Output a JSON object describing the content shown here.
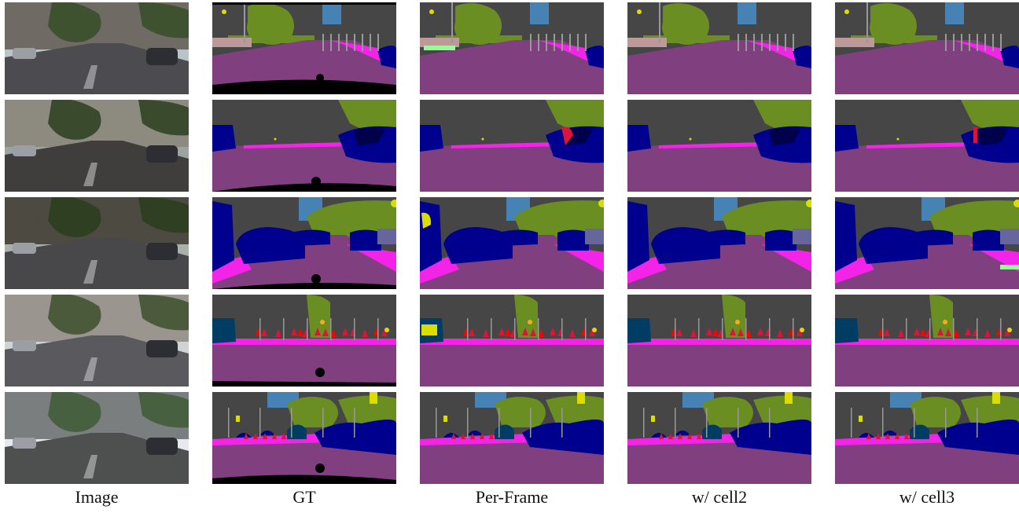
{
  "columns": [
    {
      "label": "Image",
      "kind": "photo"
    },
    {
      "label": "GT",
      "kind": "gt"
    },
    {
      "label": "Per-Frame",
      "kind": "pred"
    },
    {
      "label": "w/ cell2",
      "kind": "pred"
    },
    {
      "label": "w/ cell3",
      "kind": "pred"
    }
  ],
  "rows": [
    {
      "scene": "street-trees-sign"
    },
    {
      "scene": "church-parked-cars"
    },
    {
      "scene": "narrow-street-cars"
    },
    {
      "scene": "plaza-pedestrians"
    },
    {
      "scene": "road-traffic-cars"
    }
  ],
  "palette": {
    "road": "#804080",
    "sidewalk": "#f423e8",
    "building": "#464646",
    "vegetation": "#6b8e23",
    "sky": "#4682b4",
    "car": "#00008e",
    "person": "#dc143c",
    "rider": "#ff0000",
    "traffic_sign": "#dcdc00",
    "traffic_light": "#faaa1e",
    "pole": "#999999",
    "bus": "#003c64",
    "terrain": "#98fb98",
    "truck": "#00004b",
    "fence": "#be9999",
    "wall": "#66669c",
    "ego_void": "#000000"
  }
}
